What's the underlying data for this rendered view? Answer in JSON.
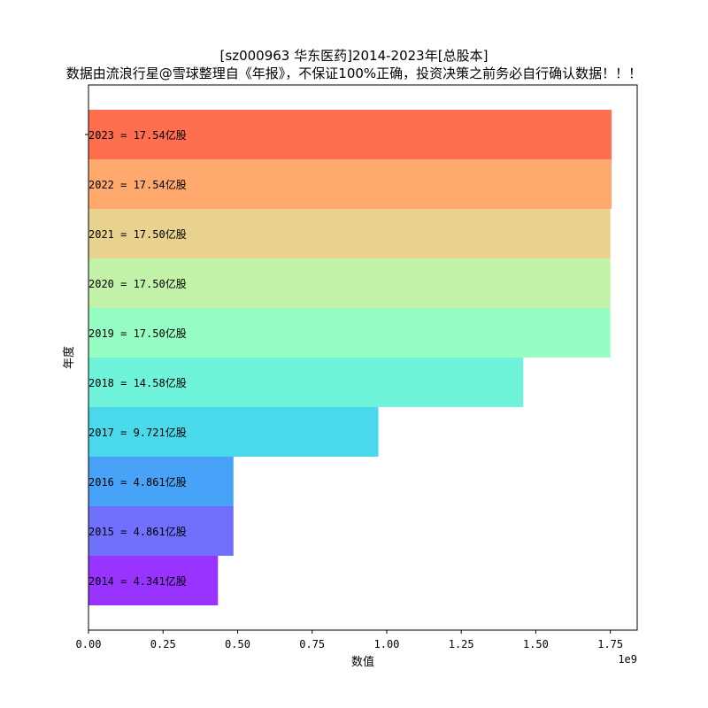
{
  "chart_data": {
    "type": "bar",
    "orientation": "horizontal",
    "title": "[sz000963 华东医药]2014-2023年[总股本]",
    "subtitle": "数据由流浪行星@雪球整理自《年报》，不保证100%正确，投资决策之前务必自行确认数据！！！",
    "xlabel": "数值",
    "ylabel": "年度",
    "x_multiplier_label": "1e9",
    "xlim": [
      0,
      1840000000
    ],
    "xticks": [
      0,
      250000000,
      500000000,
      750000000,
      1000000000,
      1250000000,
      1500000000,
      1750000000
    ],
    "xtick_labels": [
      "0.00",
      "0.25",
      "0.50",
      "0.75",
      "1.00",
      "1.25",
      "1.50",
      "1.75"
    ],
    "categories": [
      "2023",
      "2022",
      "2021",
      "2020",
      "2019",
      "2018",
      "2017",
      "2016",
      "2015",
      "2014"
    ],
    "values": [
      1754000000,
      1754000000,
      1750000000,
      1750000000,
      1750000000,
      1458000000,
      972100000,
      486100000,
      486100000,
      434100000
    ],
    "bar_labels": [
      "2023 = 17.54亿股",
      "2022 = 17.54亿股",
      "2021 = 17.50亿股",
      "2020 = 17.50亿股",
      "2019 = 17.50亿股",
      "2018 = 14.58亿股",
      "2017 = 9.721亿股",
      "2016 = 4.861亿股",
      "2015 = 4.861亿股",
      "2014 = 4.341亿股"
    ],
    "colors": [
      "#ff6e4e",
      "#ffa96e",
      "#e9d28e",
      "#c3f3a8",
      "#96fdc3",
      "#6ff3da",
      "#49d9eb",
      "#48a3f8",
      "#7070fd",
      "#9933ff"
    ],
    "grid": false
  }
}
